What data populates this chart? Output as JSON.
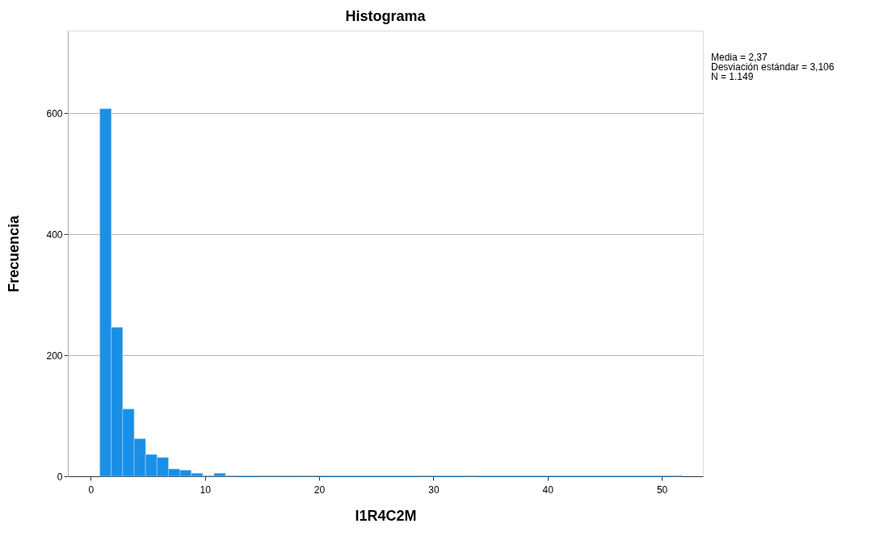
{
  "chart_data": {
    "type": "histogram",
    "title": "Histograma",
    "xlabel": "I1R4C2M",
    "ylabel": "Frecuencia",
    "bins": [
      0.8,
      1.8,
      2.8,
      3.8,
      4.8,
      5.8,
      6.8,
      7.8,
      8.8,
      9.8,
      10.8,
      11.8,
      12.8,
      13.8,
      14.8,
      15.8,
      16.8,
      17.8,
      18.8,
      19.8,
      20.8,
      21.8,
      22.8,
      23.8,
      24.8,
      25.8,
      26.8,
      27.8,
      28.8,
      29.8,
      30.8,
      31.8,
      32.8,
      33.8,
      34.8,
      35.8,
      36.8,
      37.8,
      38.8,
      39.8,
      40.8,
      41.8,
      42.8,
      43.8,
      44.8,
      45.8,
      46.8,
      47.8,
      48.8,
      49.8,
      50.8,
      51.8
    ],
    "values": [
      607,
      246,
      111,
      62,
      36,
      31,
      12,
      10,
      5,
      1,
      5,
      1,
      0,
      0,
      1,
      1,
      0,
      1,
      1,
      0,
      0,
      0,
      0,
      0,
      0,
      0,
      0,
      0,
      1,
      0,
      0,
      0,
      1,
      0,
      0,
      0,
      0,
      0,
      0,
      0,
      0,
      0,
      0,
      0,
      0,
      0,
      0,
      0,
      0,
      0,
      1
    ],
    "color": "#1a8fe6",
    "xlim": [
      -2,
      53.6
    ],
    "ylim": [
      0,
      736
    ],
    "xticks": [
      0,
      10,
      20,
      30,
      40,
      50
    ],
    "yticks": [
      0,
      200,
      400,
      600
    ],
    "grid": "y",
    "annotations": [
      "Media = 2,37",
      "Desviación estándar = 3,106",
      "N = 1.149"
    ]
  }
}
